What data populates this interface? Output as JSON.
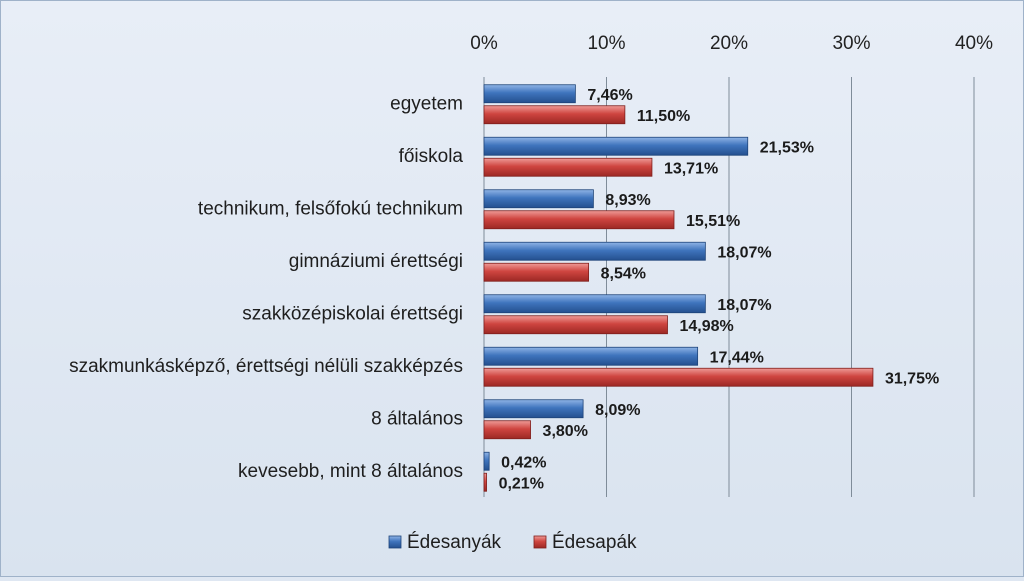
{
  "chart_data": {
    "type": "bar",
    "orientation": "horizontal",
    "categories": [
      "egyetem",
      "főiskola",
      "technikum, felsőfokú technikum",
      "gimnáziumi érettségi",
      "szakközépiskolai érettségi",
      "szakmunkásképző, érettségi nélüli szakképzés",
      "8 általános",
      "kevesebb, mint 8 általános"
    ],
    "series": [
      {
        "name": "Édesanyák",
        "color": "#3b6fb4",
        "values": [
          7.46,
          21.53,
          8.93,
          18.07,
          18.07,
          17.44,
          8.09,
          0.42
        ],
        "labels": [
          "7,46%",
          "21,53%",
          "8,93%",
          "18,07%",
          "18,07%",
          "17,44%",
          "8,09%",
          "0,42%"
        ]
      },
      {
        "name": "Édesapák",
        "color": "#c8423d",
        "values": [
          11.5,
          13.71,
          15.51,
          8.54,
          14.98,
          31.75,
          3.8,
          0.21
        ],
        "labels": [
          "11,50%",
          "13,71%",
          "15,51%",
          "8,54%",
          "14,98%",
          "31,75%",
          "3,80%",
          "0,21%"
        ]
      }
    ],
    "xlim": [
      0,
      40
    ],
    "xticks": [
      0,
      10,
      20,
      30,
      40
    ],
    "xtick_labels": [
      "0%",
      "10%",
      "20%",
      "30%",
      "40%"
    ],
    "x_axis_position": "top",
    "grid": true,
    "legend_position": "bottom-center",
    "title": "",
    "xlabel": "",
    "ylabel": ""
  }
}
